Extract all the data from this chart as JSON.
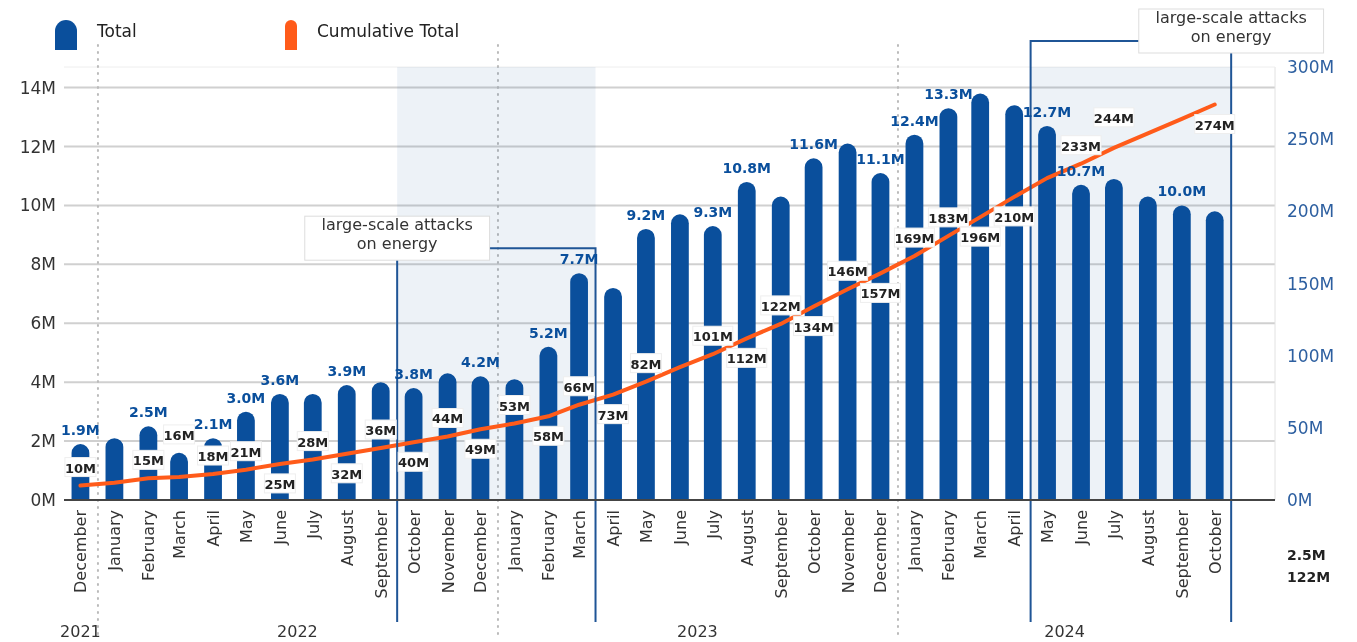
{
  "chart_data": {
    "type": "bar",
    "x": [
      "2021-12",
      "2022-01",
      "2022-02",
      "2022-03",
      "2022-04",
      "2022-05",
      "2022-06",
      "2022-07",
      "2022-08",
      "2022-09",
      "2022-10",
      "2022-11",
      "2022-12",
      "2023-01",
      "2023-02",
      "2023-03",
      "2023-04",
      "2023-05",
      "2023-06",
      "2023-07",
      "2023-08",
      "2023-09",
      "2023-10",
      "2023-11",
      "2023-12",
      "2024-01",
      "2024-02",
      "2024-03",
      "2024-04",
      "2024-05",
      "2024-06",
      "2024-07",
      "2024-08",
      "2024-09",
      "2024-10"
    ],
    "xticks": [
      {
        "value": "2021-12",
        "label": "December"
      },
      {
        "value": "2022-01",
        "label": "January"
      },
      {
        "value": "2022-02",
        "label": "February"
      },
      {
        "value": "2022-03",
        "label": "March"
      },
      {
        "value": "2022-04",
        "label": "April"
      },
      {
        "value": "2022-05",
        "label": "May"
      },
      {
        "value": "2022-06",
        "label": "June"
      },
      {
        "value": "2022-07",
        "label": "July"
      },
      {
        "value": "2022-08",
        "label": "August"
      },
      {
        "value": "2022-09",
        "label": "September"
      },
      {
        "value": "2022-10",
        "label": "October"
      },
      {
        "value": "2022-11",
        "label": "November"
      },
      {
        "value": "2022-12",
        "label": "December"
      },
      {
        "value": "2023-01",
        "label": "January"
      },
      {
        "value": "2023-02",
        "label": "February"
      },
      {
        "value": "2023-03",
        "label": "March"
      },
      {
        "value": "2023-04",
        "label": "April"
      },
      {
        "value": "2023-05",
        "label": "May"
      },
      {
        "value": "2023-06",
        "label": "June"
      },
      {
        "value": "2023-07",
        "label": "July"
      },
      {
        "value": "2023-08",
        "label": "August"
      },
      {
        "value": "2023-09",
        "label": "September"
      },
      {
        "value": "2023-10",
        "label": "October"
      },
      {
        "value": "2023-11",
        "label": "November"
      },
      {
        "value": "2023-12",
        "label": "December"
      },
      {
        "value": "2024-01",
        "label": "January"
      },
      {
        "value": "2024-02",
        "label": "February"
      },
      {
        "value": "2024-03",
        "label": "March"
      },
      {
        "value": "2024-04",
        "label": "April"
      },
      {
        "value": "2024-05",
        "label": "May"
      },
      {
        "value": "2024-06",
        "label": "June"
      },
      {
        "value": "2024-07",
        "label": "July"
      },
      {
        "value": "2024-08",
        "label": "August"
      },
      {
        "value": "2024-09",
        "label": "September"
      },
      {
        "value": "2024-10",
        "label": "October"
      }
    ],
    "series": [
      {
        "name": "Total",
        "color": "#0a4f9c",
        "values": [
          1.9,
          2.1,
          2.5,
          1.6,
          2.1,
          3.0,
          3.6,
          3.6,
          3.9,
          4.0,
          3.8,
          4.3,
          4.2,
          4.1,
          5.2,
          7.7,
          7.2,
          9.2,
          9.7,
          9.3,
          10.8,
          10.3,
          11.6,
          12.1,
          11.1,
          12.4,
          13.3,
          13.8,
          13.4,
          12.7,
          10.7,
          10.9,
          10.3,
          10.0,
          9.8
        ],
        "value_labels": [
          "1.9M",
          null,
          "2.5M",
          null,
          "2.1M",
          "3.0M",
          "3.6M",
          null,
          "3.9M",
          null,
          "3.8M",
          null,
          "4.2M",
          null,
          "5.2M",
          "7.7M",
          null,
          "9.2M",
          null,
          "9.3M",
          "10.8M",
          null,
          "11.6M",
          null,
          "11.1M",
          "12.4M",
          "13.3M",
          null,
          null,
          "12.7M",
          "10.7M",
          null,
          null,
          "10.0M",
          null
        ]
      },
      {
        "name": "Cumulative Total",
        "type": "line",
        "axis": "y2",
        "color": "#ff5b1a",
        "values": [
          10,
          12,
          15,
          16,
          18,
          21,
          25,
          28,
          32,
          36,
          40,
          44,
          49,
          53,
          58,
          66,
          73,
          82,
          92,
          101,
          112,
          122,
          134,
          146,
          157,
          169,
          183,
          196,
          210,
          223,
          233,
          244,
          254,
          264,
          274
        ],
        "value_labels": [
          "10M",
          null,
          "15M",
          "16M",
          "18M",
          "21M",
          "25M",
          "28M",
          "32M",
          "36M",
          "40M",
          "44M",
          "49M",
          "53M",
          "58M",
          "66M",
          "73M",
          "82M",
          null,
          "101M",
          "112M",
          "122M",
          "134M",
          "146M",
          "157M",
          "169M",
          "183M",
          "196M",
          "210M",
          null,
          "233M",
          "244M",
          null,
          null,
          "274M"
        ]
      }
    ],
    "xlim": [
      "2021-11-16",
      "2024-11-25"
    ],
    "ylim": [
      0,
      14.7
    ],
    "yticks": [
      {
        "value": 0,
        "label": "0M"
      },
      {
        "value": 2,
        "label": "2M"
      },
      {
        "value": 4,
        "label": "4M"
      },
      {
        "value": 6,
        "label": "6M"
      },
      {
        "value": 8,
        "label": "8M"
      },
      {
        "value": 10,
        "label": "10M"
      },
      {
        "value": 12,
        "label": "12M"
      },
      {
        "value": 14,
        "label": "14M"
      }
    ],
    "y2lim": [
      0,
      300
    ],
    "y2ticks": [
      {
        "value": 0,
        "label": "0M"
      },
      {
        "value": 50,
        "label": "50M"
      },
      {
        "value": 100,
        "label": "100M"
      },
      {
        "value": 150,
        "label": "150M"
      },
      {
        "value": 200,
        "label": "200M"
      },
      {
        "value": 250,
        "label": "250M"
      },
      {
        "value": 300,
        "label": "300M"
      }
    ],
    "grid": "y",
    "legend": "top left",
    "bands": [
      {
        "axis": "x",
        "from": "2022-09-16",
        "to": "2023-03-16",
        "label": "large-scale attacks\non energy",
        "color": "#1f5596"
      },
      {
        "axis": "x",
        "from": "2024-04-16",
        "to": "2024-10-16",
        "label": "large-scale attacks\non energy",
        "color": "#1f5596"
      }
    ],
    "annotations": [
      "2021",
      "2022",
      "2023",
      "2024",
      "2.5M",
      "122M"
    ]
  }
}
